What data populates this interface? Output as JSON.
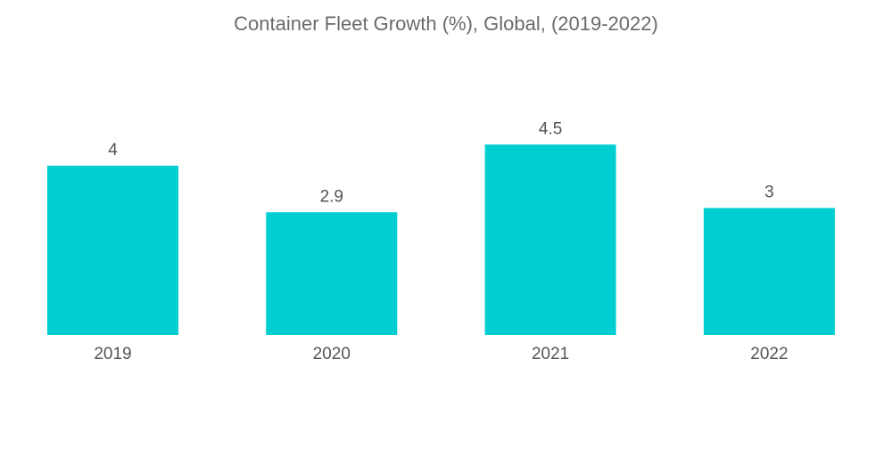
{
  "chart_data": {
    "type": "bar",
    "title": "Container Fleet Growth (%), Global, (2019-2022)",
    "categories": [
      "2019",
      "2020",
      "2021",
      "2022"
    ],
    "values": [
      4,
      2.9,
      4.5,
      3
    ],
    "value_labels": [
      "4",
      "2.9",
      "4.5",
      "3"
    ],
    "xlabel": "",
    "ylabel": "",
    "ylim": [
      0,
      5
    ],
    "grid": false,
    "legend": "none",
    "bar_color": "#00ced1"
  }
}
